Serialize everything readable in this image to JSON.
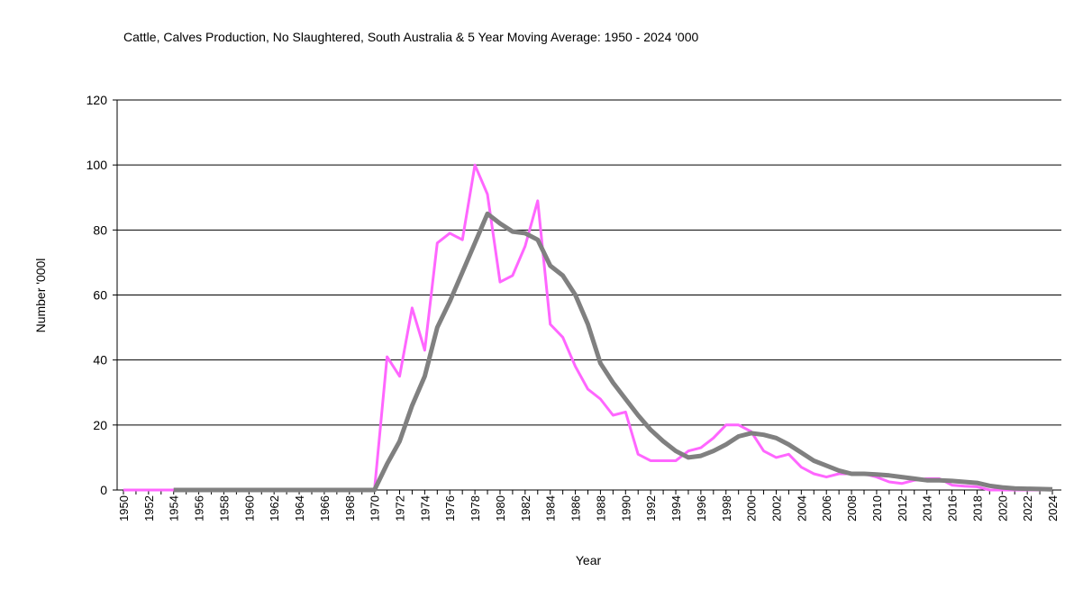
{
  "chart_data": {
    "type": "line",
    "title": "Cattle, Calves Production, No Slaughtered, South Australia & 5 Year Moving Average: 1950 - 2024 '000",
    "xlabel": "Year",
    "ylabel": "Number '000l",
    "ylim": [
      0,
      120
    ],
    "yticks": [
      0,
      20,
      40,
      60,
      80,
      100,
      120
    ],
    "xlim": [
      1950,
      2024
    ],
    "grid": "horizontal",
    "x": [
      1950,
      1951,
      1952,
      1953,
      1954,
      1955,
      1956,
      1957,
      1958,
      1959,
      1960,
      1961,
      1962,
      1963,
      1964,
      1965,
      1966,
      1967,
      1968,
      1969,
      1970,
      1971,
      1972,
      1973,
      1974,
      1975,
      1976,
      1977,
      1978,
      1979,
      1980,
      1981,
      1982,
      1983,
      1984,
      1985,
      1986,
      1987,
      1988,
      1989,
      1990,
      1991,
      1992,
      1993,
      1994,
      1995,
      1996,
      1997,
      1998,
      1999,
      2000,
      2001,
      2002,
      2003,
      2004,
      2005,
      2006,
      2007,
      2008,
      2009,
      2010,
      2011,
      2012,
      2013,
      2014,
      2015,
      2016,
      2017,
      2018,
      2019,
      2020,
      2021,
      2022,
      2023,
      2024
    ],
    "series": [
      {
        "name": "Production",
        "color": "#ff66ff",
        "values": [
          0,
          0,
          0,
          0,
          0,
          0,
          0,
          0,
          0,
          0,
          0,
          0,
          0,
          0,
          0,
          0,
          0,
          0,
          0,
          0,
          0,
          41,
          35,
          56,
          43,
          76,
          79,
          77,
          100,
          91,
          64,
          66,
          75,
          89,
          51,
          47,
          38,
          31,
          28,
          23,
          24,
          11,
          9,
          9,
          9,
          12,
          13,
          16,
          20,
          20,
          18,
          12,
          10,
          11,
          7,
          5,
          4,
          5,
          5,
          5,
          4,
          2.5,
          2,
          3,
          3.5,
          3.5,
          1.5,
          1.2,
          1,
          0,
          0,
          0,
          0,
          0,
          0
        ]
      },
      {
        "name": "5 Year Moving Average",
        "color": "#808080",
        "values": [
          null,
          null,
          null,
          null,
          0,
          0,
          0,
          0,
          0,
          0,
          0,
          0,
          0,
          0,
          0,
          0,
          0,
          0,
          0,
          0,
          0,
          8,
          15,
          26,
          35,
          50,
          58,
          67,
          76,
          85,
          82,
          79.5,
          79,
          77,
          69,
          66,
          60,
          51,
          39,
          33,
          28,
          23,
          18.5,
          15,
          12,
          10,
          10.5,
          12,
          14,
          16.5,
          17.5,
          17,
          16,
          14,
          11.5,
          9,
          7.5,
          6,
          5,
          5,
          4.8,
          4.5,
          4,
          3.5,
          3,
          3,
          2.8,
          2.5,
          2.2,
          1.3,
          0.8,
          0.5,
          0.4,
          0.3,
          0.2
        ]
      }
    ]
  }
}
